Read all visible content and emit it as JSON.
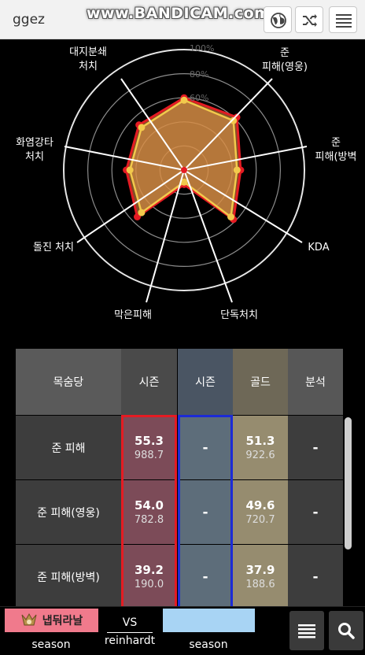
{
  "header": {
    "title": "ggez",
    "watermark": "www.BANDICAM.com",
    "icons": [
      "globe-icon",
      "shuffle-icon",
      "menu-icon"
    ]
  },
  "radar": {
    "axes": [
      {
        "label": "대지분쇄\n처치"
      },
      {
        "label": "준\n피해(영웅)"
      },
      {
        "label": "준\n피해(방벽"
      },
      {
        "label": "KDA"
      },
      {
        "label": "단독처치"
      },
      {
        "label": "막은피해"
      },
      {
        "label": "돌진 처치"
      },
      {
        "label": "화염강타\n처치"
      }
    ],
    "ring_labels": [
      "100%",
      "80%",
      "60%"
    ],
    "series": [
      {
        "name": "",
        "color": "#e51b23",
        "values": [
          0.6,
          0.62,
          0.47,
          0.58,
          0.12,
          0.55,
          0.48,
          0.53
        ]
      },
      {
        "name": "",
        "color": "#f2c94c",
        "values": [
          0.58,
          0.58,
          0.44,
          0.55,
          0.1,
          0.5,
          0.45,
          0.5
        ]
      }
    ],
    "colors": {
      "fill": "#c77b3a",
      "ring": "#ffffff",
      "axis": "#ffffff"
    }
  },
  "table": {
    "headers": [
      "목숨당",
      "시즌",
      "시즌",
      "골드",
      "분석"
    ],
    "rows": [
      {
        "label": "준 피해",
        "season1": "55.3",
        "season1_sub": "988.7",
        "season2": "-",
        "gold": "51.3",
        "gold_sub": "922.6",
        "analysis": "-"
      },
      {
        "label": "준 피해(영웅)",
        "season1": "54.0",
        "season1_sub": "782.8",
        "season2": "-",
        "gold": "49.6",
        "gold_sub": "720.7",
        "analysis": "-"
      },
      {
        "label": "준 피해(방벽)",
        "season1": "39.2",
        "season1_sub": "190.0",
        "season2": "-",
        "gold": "37.9",
        "gold_sub": "188.6",
        "analysis": "-"
      }
    ],
    "colors": {
      "header_label": "#5a5a5a",
      "header_season1": "#4a4a4a",
      "header_season2": "#4a5563",
      "header_gold": "#6e6857",
      "header_analysis": "#575757",
      "row_label": "#3d3d3d",
      "season1": "#7c4b58",
      "season2": "#5d6d7a",
      "gold": "#968c6f",
      "analysis": "#3d3d3d",
      "selected_red": "#e51b23",
      "selected_blue": "#1c2bd6"
    }
  },
  "footer": {
    "player1": "냅둬라날",
    "player2": "",
    "vs": "VS",
    "hero": "reinhardt",
    "mode_left": "season",
    "mode_right": "season"
  }
}
